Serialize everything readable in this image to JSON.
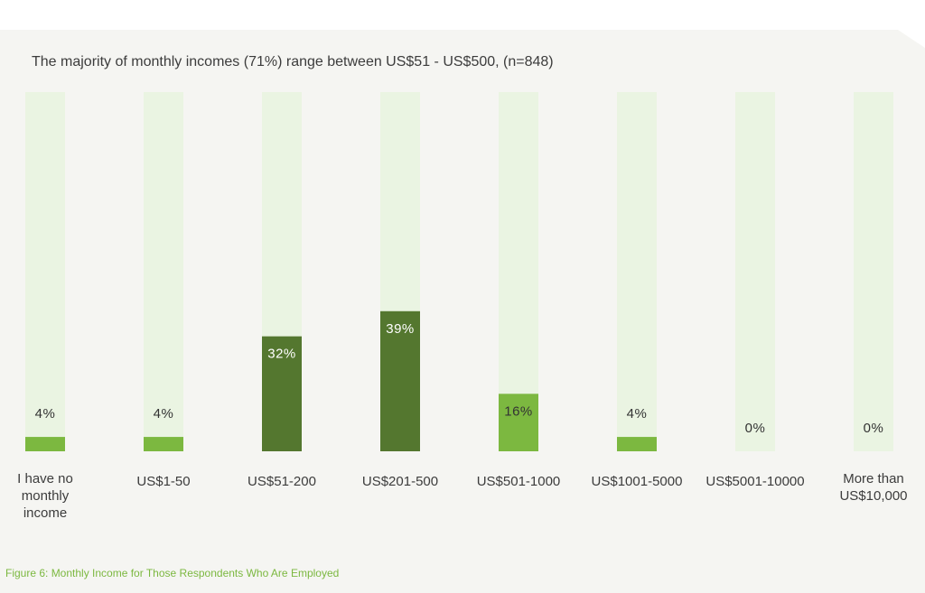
{
  "page": {
    "caption": "Figure 6: Monthly Income for Those Respondents Who Are Employed"
  },
  "chart_data": {
    "type": "bar",
    "title": "The majority of monthly incomes (71%) range between US$51 - US$500, (n=848)",
    "categories": [
      "I have no monthly income",
      "US$1-50",
      "US$51-200",
      "US$201-500",
      "US$501-1000",
      "US$1001-5000",
      "US$5001-10000",
      "More than US$10,000"
    ],
    "category_lines": [
      [
        "I have no",
        "monthly",
        "income"
      ],
      [
        "US$1-50"
      ],
      [
        "US$51-200"
      ],
      [
        "US$201-500"
      ],
      [
        "US$501-1000"
      ],
      [
        "US$1001-5000"
      ],
      [
        "US$5001-10000"
      ],
      [
        "More than",
        "US$10,000"
      ]
    ],
    "values": [
      4,
      4,
      32,
      39,
      16,
      4,
      0,
      0
    ],
    "data_labels": [
      "4%",
      "4%",
      "32%",
      "39%",
      "16%",
      "4%",
      "0%",
      "0%"
    ],
    "ylim": [
      0,
      100
    ],
    "unit": "%",
    "xlabel": "",
    "ylabel": "",
    "grid": false,
    "legend": "none",
    "colors": {
      "track": "#eaf4e2",
      "bar_light": "#7cb840",
      "bar_dark": "#54772f",
      "label_on_dark": "#ffffff",
      "label_default": "#333333"
    },
    "dark_bar_indices": [
      2,
      3
    ]
  }
}
